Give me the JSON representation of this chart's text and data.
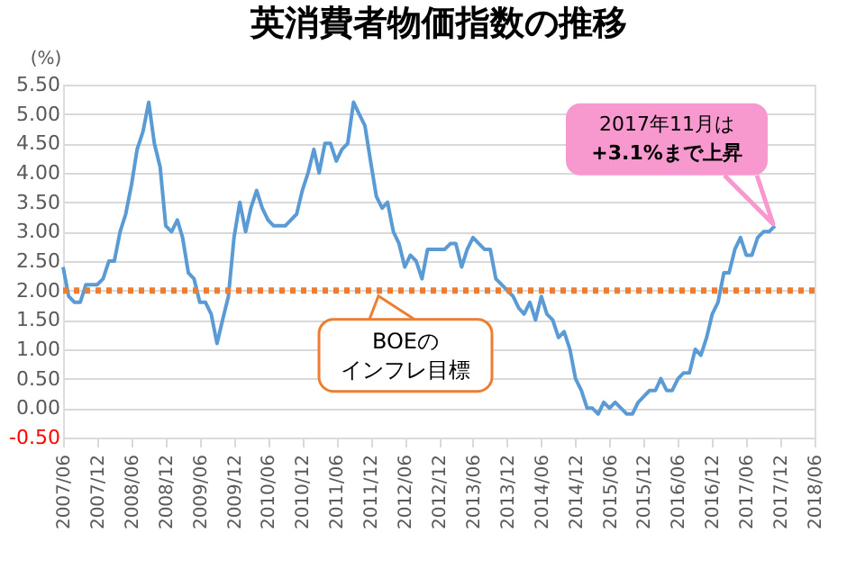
{
  "chart_data": {
    "type": "line",
    "title": "英消費者物価指数の推移",
    "ylabel": "(%)",
    "x": [
      "2007-06",
      "2007-07",
      "2007-08",
      "2007-09",
      "2007-10",
      "2007-11",
      "2007-12",
      "2008-01",
      "2008-02",
      "2008-03",
      "2008-04",
      "2008-05",
      "2008-06",
      "2008-07",
      "2008-08",
      "2008-09",
      "2008-10",
      "2008-11",
      "2008-12",
      "2009-01",
      "2009-02",
      "2009-03",
      "2009-04",
      "2009-05",
      "2009-06",
      "2009-07",
      "2009-08",
      "2009-09",
      "2009-10",
      "2009-11",
      "2009-12",
      "2010-01",
      "2010-02",
      "2010-03",
      "2010-04",
      "2010-05",
      "2010-06",
      "2010-07",
      "2010-08",
      "2010-09",
      "2010-10",
      "2010-11",
      "2010-12",
      "2011-01",
      "2011-02",
      "2011-03",
      "2011-04",
      "2011-05",
      "2011-06",
      "2011-07",
      "2011-08",
      "2011-09",
      "2011-10",
      "2011-11",
      "2011-12",
      "2012-01",
      "2012-02",
      "2012-03",
      "2012-04",
      "2012-05",
      "2012-06",
      "2012-07",
      "2012-08",
      "2012-09",
      "2012-10",
      "2012-11",
      "2012-12",
      "2013-01",
      "2013-02",
      "2013-03",
      "2013-04",
      "2013-05",
      "2013-06",
      "2013-07",
      "2013-08",
      "2013-09",
      "2013-10",
      "2013-11",
      "2013-12",
      "2014-01",
      "2014-02",
      "2014-03",
      "2014-04",
      "2014-05",
      "2014-06",
      "2014-07",
      "2014-08",
      "2014-09",
      "2014-10",
      "2014-11",
      "2014-12",
      "2015-01",
      "2015-02",
      "2015-03",
      "2015-04",
      "2015-05",
      "2015-06",
      "2015-07",
      "2015-08",
      "2015-09",
      "2015-10",
      "2015-11",
      "2015-12",
      "2016-01",
      "2016-02",
      "2016-03",
      "2016-04",
      "2016-05",
      "2016-06",
      "2016-07",
      "2016-08",
      "2016-09",
      "2016-10",
      "2016-11",
      "2016-12",
      "2017-01",
      "2017-02",
      "2017-03",
      "2017-04",
      "2017-05",
      "2017-06",
      "2017-07",
      "2017-08",
      "2017-09",
      "2017-10",
      "2017-11"
    ],
    "series": [
      {
        "color": "#5b9bd5",
        "values": [
          2.4,
          1.9,
          1.8,
          1.8,
          2.1,
          2.1,
          2.1,
          2.2,
          2.5,
          2.5,
          3.0,
          3.3,
          3.8,
          4.4,
          4.7,
          5.2,
          4.5,
          4.1,
          3.1,
          3.0,
          3.2,
          2.9,
          2.3,
          2.2,
          1.8,
          1.8,
          1.6,
          1.1,
          1.5,
          1.9,
          2.9,
          3.5,
          3.0,
          3.4,
          3.7,
          3.4,
          3.2,
          3.1,
          3.1,
          3.1,
          3.2,
          3.3,
          3.7,
          4.0,
          4.4,
          4.0,
          4.5,
          4.5,
          4.2,
          4.4,
          4.5,
          5.2,
          5.0,
          4.8,
          4.2,
          3.6,
          3.4,
          3.5,
          3.0,
          2.8,
          2.4,
          2.6,
          2.5,
          2.2,
          2.7,
          2.7,
          2.7,
          2.7,
          2.8,
          2.8,
          2.4,
          2.7,
          2.9,
          2.8,
          2.7,
          2.7,
          2.2,
          2.1,
          2.0,
          1.9,
          1.7,
          1.6,
          1.8,
          1.5,
          1.9,
          1.6,
          1.5,
          1.2,
          1.3,
          1.0,
          0.5,
          0.3,
          0.0,
          0.0,
          -0.1,
          0.1,
          0.0,
          0.1,
          0.0,
          -0.1,
          -0.1,
          0.1,
          0.2,
          0.3,
          0.3,
          0.5,
          0.3,
          0.3,
          0.5,
          0.6,
          0.6,
          1.0,
          0.9,
          1.2,
          1.6,
          1.8,
          2.3,
          2.3,
          2.7,
          2.9,
          2.6,
          2.6,
          2.9,
          3.0,
          3.0,
          3.1
        ]
      }
    ],
    "xlim": [
      "2007-06",
      "2018-06"
    ],
    "xticks": [
      {
        "value": "2007-06",
        "label": "2007/06"
      },
      {
        "value": "2007-12",
        "label": "2007/12"
      },
      {
        "value": "2008-06",
        "label": "2008/06"
      },
      {
        "value": "2008-12",
        "label": "2008/12"
      },
      {
        "value": "2009-06",
        "label": "2009/06"
      },
      {
        "value": "2009-12",
        "label": "2009/12"
      },
      {
        "value": "2010-06",
        "label": "2010/06"
      },
      {
        "value": "2010-12",
        "label": "2010/12"
      },
      {
        "value": "2011-06",
        "label": "2011/06"
      },
      {
        "value": "2011-12",
        "label": "2011/12"
      },
      {
        "value": "2012-06",
        "label": "2012/06"
      },
      {
        "value": "2012-12",
        "label": "2012/12"
      },
      {
        "value": "2013-06",
        "label": "2013/06"
      },
      {
        "value": "2013-12",
        "label": "2013/12"
      },
      {
        "value": "2014-06",
        "label": "2014/06"
      },
      {
        "value": "2014-12",
        "label": "2014/12"
      },
      {
        "value": "2015-06",
        "label": "2015/06"
      },
      {
        "value": "2015-12",
        "label": "2015/12"
      },
      {
        "value": "2016-06",
        "label": "2016/06"
      },
      {
        "value": "2016-12",
        "label": "2016/12"
      },
      {
        "value": "2017-06",
        "label": "2017/06"
      },
      {
        "value": "2017-12",
        "label": "2017/12"
      },
      {
        "value": "2018-06",
        "label": "2018/06"
      }
    ],
    "ylim": [
      -0.5,
      5.5
    ],
    "yticks": [
      {
        "value": -0.5,
        "label": "-0.50"
      },
      {
        "value": 0,
        "label": "0.00"
      },
      {
        "value": 0.5,
        "label": "0.50"
      },
      {
        "value": 1,
        "label": "1.00"
      },
      {
        "value": 1.5,
        "label": "1.50"
      },
      {
        "value": 2,
        "label": "2.00"
      },
      {
        "value": 2.5,
        "label": "2.50"
      },
      {
        "value": 3,
        "label": "3.00"
      },
      {
        "value": 3.5,
        "label": "3.50"
      },
      {
        "value": 4,
        "label": "4.00"
      },
      {
        "value": 4.5,
        "label": "4.50"
      },
      {
        "value": 5,
        "label": "5.00"
      },
      {
        "value": 5.5,
        "label": "5.50"
      }
    ],
    "ref_lines": [
      {
        "axis": "y",
        "value": 2.0,
        "label": "BOEのインフレ目標",
        "color": "#ed7d31",
        "line_style": "dotted"
      }
    ],
    "annotations": [
      "2017年11月は\n+3.1%まで上昇"
    ],
    "grid": "y"
  }
}
